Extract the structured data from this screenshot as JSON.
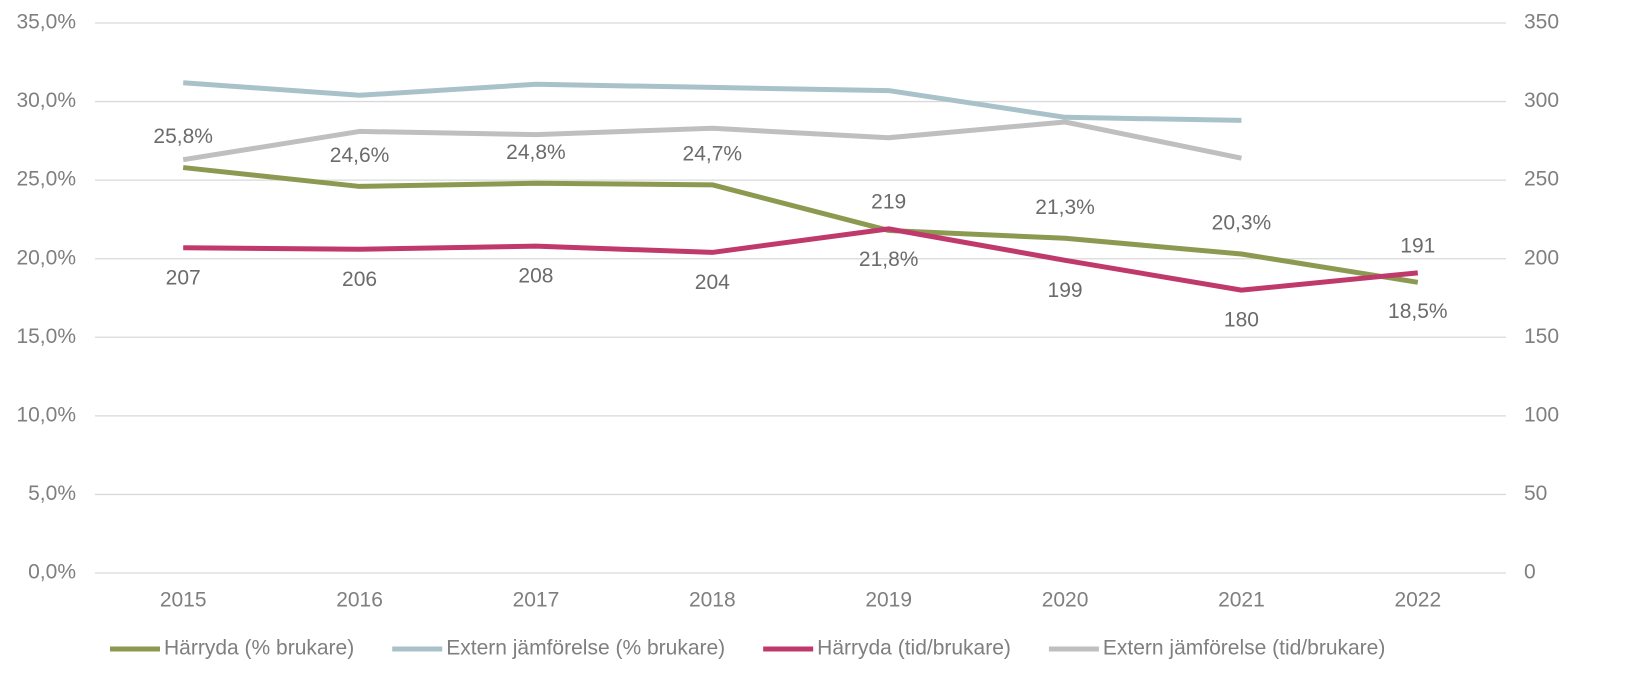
{
  "chart_data": {
    "type": "line",
    "categories": [
      "2015",
      "2016",
      "2017",
      "2018",
      "2019",
      "2020",
      "2021",
      "2022"
    ],
    "series": [
      {
        "name": "Härryda (% brukare)",
        "color": "#8c9a51",
        "values": [
          25.8,
          24.6,
          24.8,
          24.7,
          21.8,
          21.3,
          20.3,
          18.5
        ],
        "value_labels": [
          "25,8%",
          "24,6%",
          "24,8%",
          "24,7%",
          "21,8%",
          "21,3%",
          "20,3%",
          "18,5%"
        ]
      },
      {
        "name": "Extern jämförelse (% brukare)",
        "color": "#a9c2c9",
        "values": [
          31.2,
          30.4,
          31.1,
          30.9,
          30.7,
          29.0,
          28.8,
          null
        ]
      },
      {
        "name": "Härryda (tid/brukare)",
        "color": "#c0396b",
        "axis": "y2",
        "values": [
          207,
          206,
          208,
          204,
          219,
          199,
          180,
          191
        ],
        "show_labels": true
      },
      {
        "name": "Extern jämförelse (tid/brukare)",
        "color": "#bfbfbf",
        "axis": "y2",
        "values": [
          263,
          281,
          279,
          283,
          277,
          287,
          264,
          null
        ]
      }
    ],
    "ylim": [
      0,
      35
    ],
    "yticks": [
      {
        "value": 0,
        "label": "0,0%"
      },
      {
        "value": 5,
        "label": "5,0%"
      },
      {
        "value": 10,
        "label": "10,0%"
      },
      {
        "value": 15,
        "label": "15,0%"
      },
      {
        "value": 20,
        "label": "20,0%"
      },
      {
        "value": 25,
        "label": "25,0%"
      },
      {
        "value": 30,
        "label": "30,0%"
      },
      {
        "value": 35,
        "label": "35,0%"
      }
    ],
    "y2lim": [
      0,
      350
    ],
    "y2ticks": [
      0,
      50,
      100,
      150,
      200,
      250,
      300,
      350
    ],
    "grid": true,
    "legend": "bottom"
  }
}
